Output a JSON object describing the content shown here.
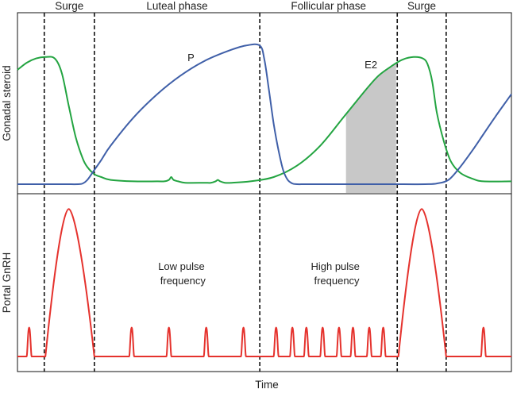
{
  "chart_data": [
    {
      "type": "line",
      "panel": "top",
      "ylabel": "Gonadal steroid",
      "phases": [
        "Surge",
        "Luteal phase",
        "Follicular phase",
        "Surge"
      ],
      "phase_boundaries": [
        11.5,
        33,
        104,
        163,
        184
      ],
      "xlim": [
        0,
        212
      ],
      "ylim": [
        0,
        1
      ],
      "series": [
        {
          "name": "P",
          "color": "#3f5fa8",
          "x": [
            0,
            8,
            20,
            26,
            28,
            30,
            33,
            36,
            40,
            50,
            60,
            70,
            80,
            90,
            98,
            104,
            106,
            108,
            110,
            112,
            114,
            116,
            118,
            120,
            124,
            135,
            150,
            160,
            175,
            180,
            185,
            190,
            195,
            200,
            205,
            212
          ],
          "y": [
            0,
            0,
            0,
            0,
            0.005,
            0.03,
            0.1,
            0.17,
            0.27,
            0.47,
            0.63,
            0.76,
            0.86,
            0.93,
            0.97,
            0.97,
            0.87,
            0.65,
            0.42,
            0.24,
            0.1,
            0.03,
            0.005,
            0,
            0,
            0,
            0,
            0,
            0,
            0.005,
            0.03,
            0.12,
            0.23,
            0.35,
            0.47,
            0.63
          ]
        },
        {
          "name": "E2",
          "color": "#23a441",
          "x": [
            0,
            4,
            8,
            12,
            16,
            19,
            22,
            25,
            28,
            30,
            33,
            36,
            40,
            50,
            60,
            63,
            65,
            66,
            67,
            69,
            72,
            80,
            83,
            85,
            86,
            87,
            89,
            92,
            100,
            110,
            120,
            130,
            140,
            150,
            155,
            160,
            165,
            170,
            174,
            176,
            178,
            180,
            183,
            186,
            190,
            195,
            200,
            212
          ],
          "y": [
            0.8,
            0.85,
            0.88,
            0.89,
            0.88,
            0.78,
            0.55,
            0.33,
            0.18,
            0.12,
            0.07,
            0.05,
            0.03,
            0.02,
            0.02,
            0.02,
            0.03,
            0.05,
            0.03,
            0.02,
            0.01,
            0.01,
            0.01,
            0.02,
            0.03,
            0.02,
            0.01,
            0.01,
            0.02,
            0.05,
            0.13,
            0.27,
            0.47,
            0.67,
            0.76,
            0.82,
            0.87,
            0.89,
            0.88,
            0.84,
            0.72,
            0.5,
            0.3,
            0.16,
            0.08,
            0.04,
            0.02,
            0.02
          ]
        }
      ],
      "shaded_region": [
        141,
        162.5
      ],
      "annotations": [
        {
          "text": "P",
          "x": 73,
          "y": 0.86
        },
        {
          "text": "E2",
          "x": 149,
          "y": 0.81
        }
      ]
    },
    {
      "type": "line",
      "panel": "bottom",
      "xlabel": "Time",
      "ylabel": "Portal GnRH",
      "xlim": [
        0,
        212
      ],
      "ylim": [
        0,
        1
      ],
      "series": [
        {
          "name": "GnRH",
          "color": "#e5322d",
          "baseline": 0,
          "pulses": {
            "x": [
              5,
              49,
              65,
              81,
              97,
              111,
              118,
              124,
              131,
              138,
              144,
              151,
              157,
              200
            ],
            "height": 0.18
          },
          "surges": [
            {
              "start": 12,
              "peak": 22,
              "end": 33,
              "height": 0.92
            },
            {
              "start": 163.5,
              "peak": 173.5,
              "end": 184,
              "height": 0.92
            }
          ]
        }
      ],
      "annotations": [
        {
          "text": "Low pulse frequency",
          "lines": [
            "Low pulse",
            "frequency"
          ],
          "x": 71,
          "y": 0.5
        },
        {
          "text": "High pulse frequency",
          "lines": [
            "High pulse",
            "frequency"
          ],
          "x": 137,
          "y": 0.5
        }
      ]
    }
  ]
}
